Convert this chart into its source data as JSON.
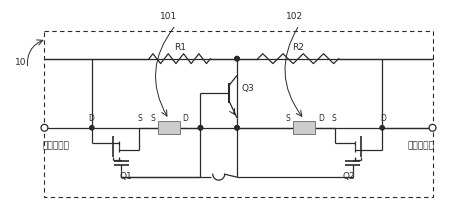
{
  "fig_width": 4.74,
  "fig_height": 2.22,
  "dpi": 100,
  "bg_color": "#ffffff",
  "line_color": "#2a2a2a",
  "label_10": "10",
  "label_101": "101",
  "label_102": "102",
  "label_R1": "R1",
  "label_R2": "R2",
  "label_Q1": "Q1",
  "label_Q2": "Q2",
  "label_Q3": "Q3",
  "label_D": "D",
  "label_S": "S",
  "label_in": "模块输入端",
  "label_out": "模块输出端",
  "font_size": 6.5,
  "font_size_small": 5.5
}
